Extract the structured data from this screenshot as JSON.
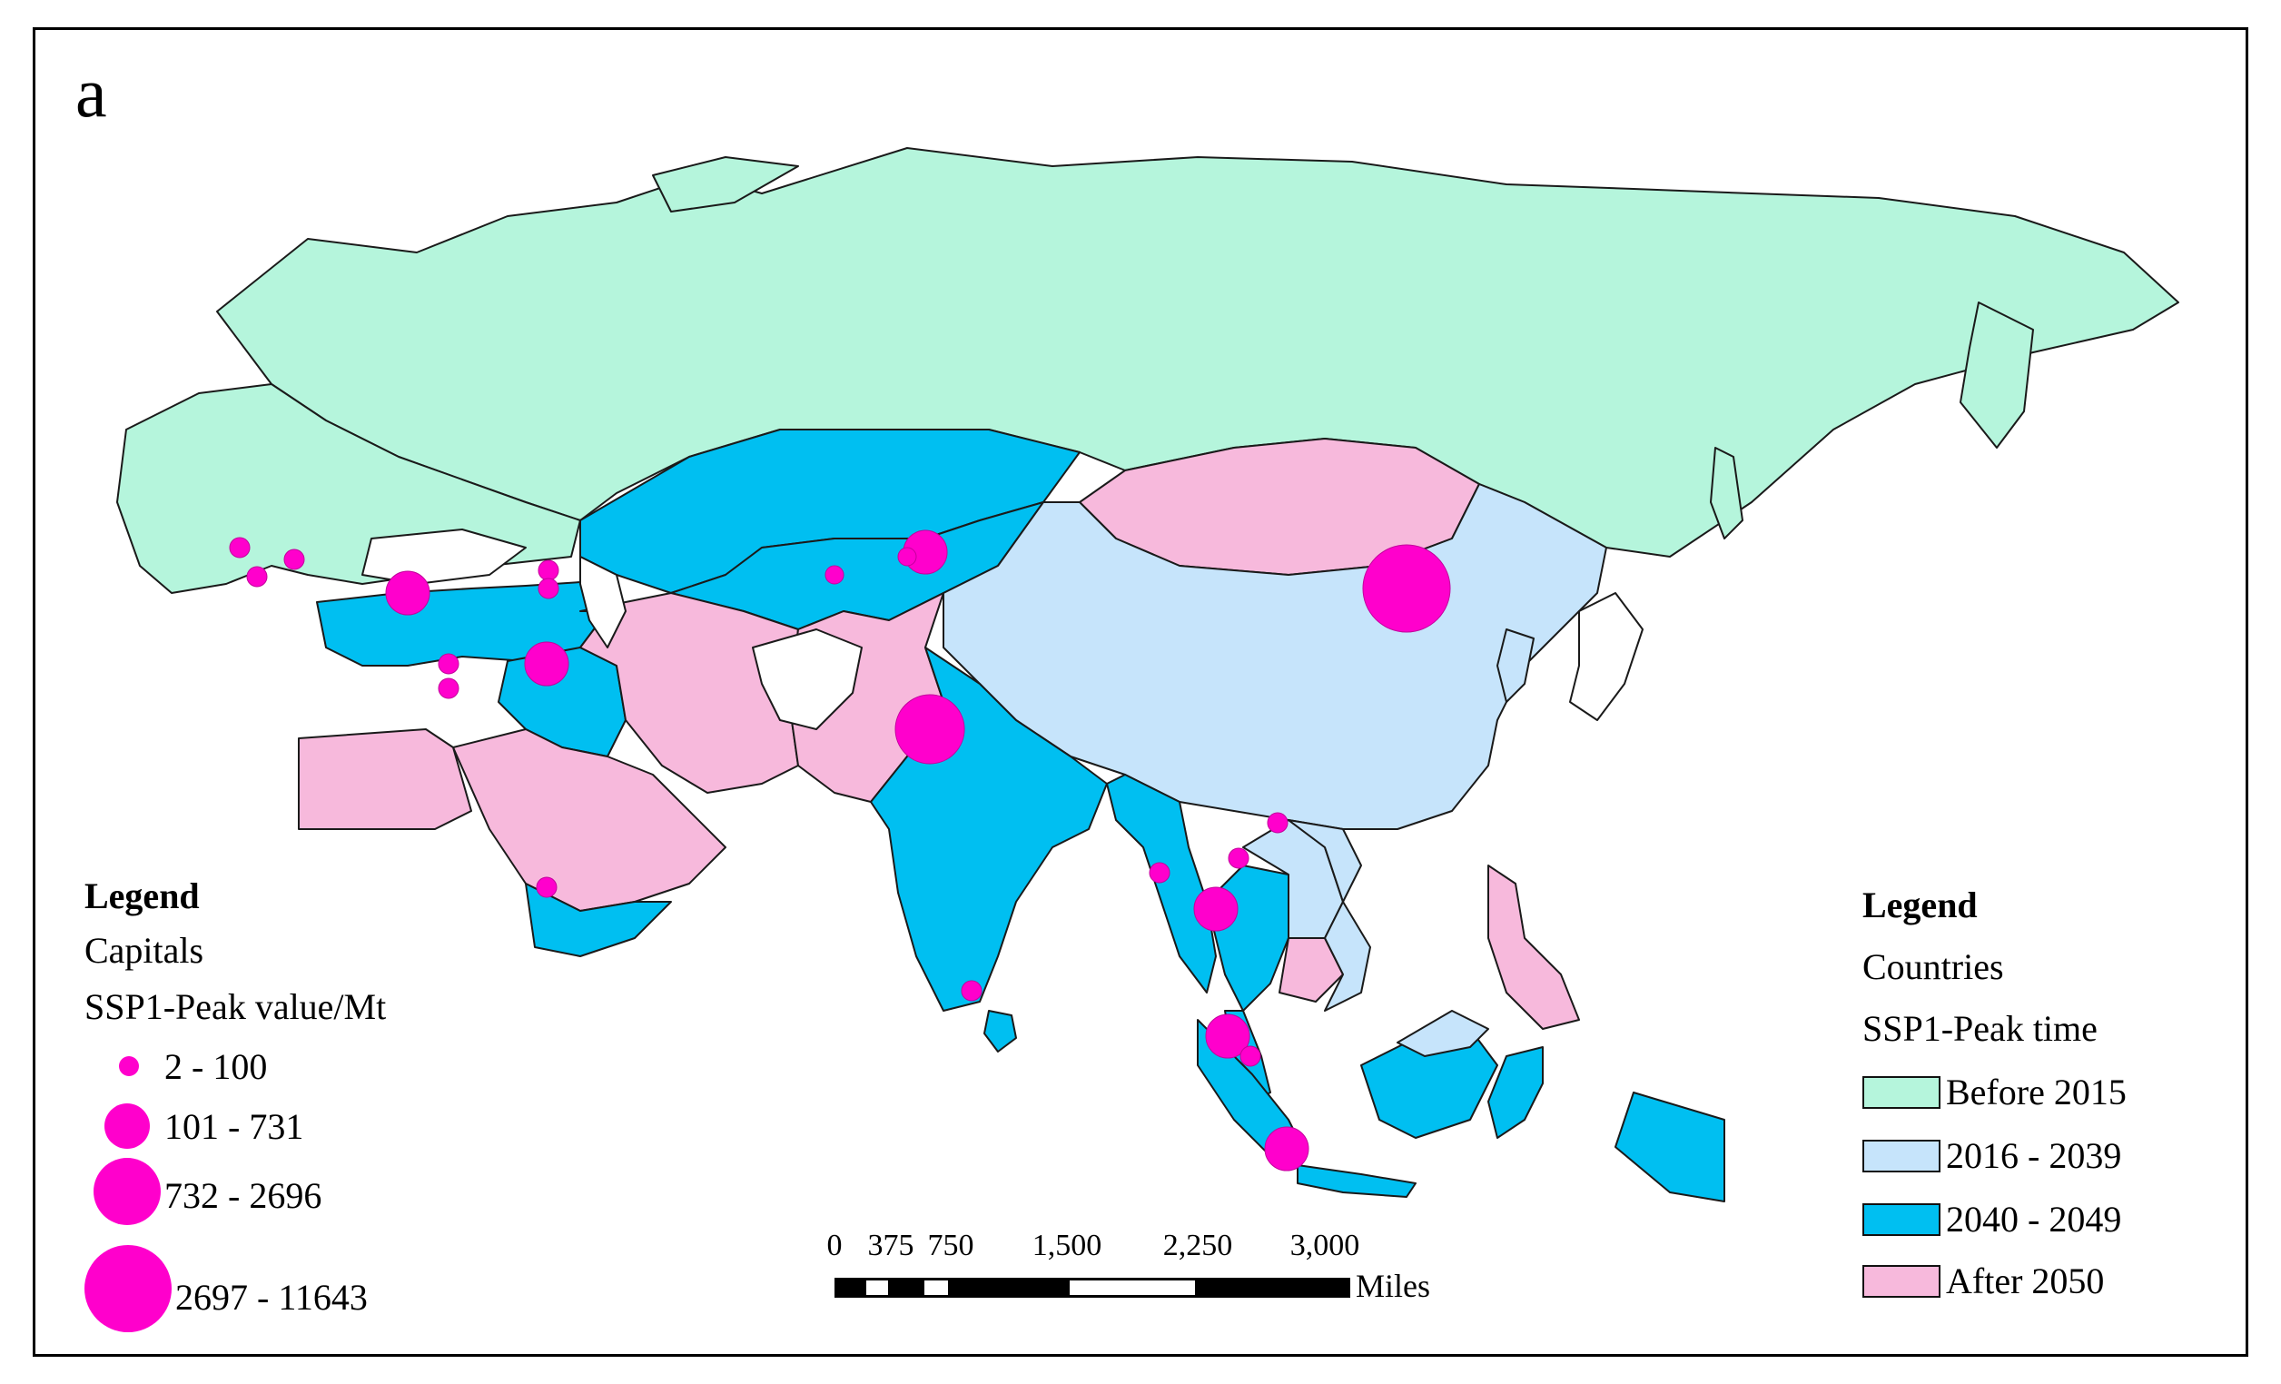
{
  "panel_label": "a",
  "colors": {
    "before_2015": "#b5f5dc",
    "2016_2039": "#c6e4fb",
    "2040_2049": "#00bff1",
    "after_2050": "#f7b9dc",
    "no_data": "#ffffff",
    "capital": "#ff00cc"
  },
  "legend_left": {
    "title": "Legend",
    "layer": "Capitals",
    "field": "SSP1-Peak value/Mt",
    "classes": [
      "2 - 100",
      "101 - 731",
      "732 - 2696",
      "2697 - 11643"
    ]
  },
  "legend_right": {
    "title": "Legend",
    "layer": "Countries",
    "field": "SSP1-Peak time",
    "classes": [
      {
        "label": "Before 2015",
        "color": "#b5f5dc"
      },
      {
        "label": "2016 - 2039",
        "color": "#c6e4fb"
      },
      {
        "label": "2040 - 2049",
        "color": "#00bff1"
      },
      {
        "label": "After 2050",
        "color": "#f7b9dc"
      }
    ]
  },
  "scale_bar": {
    "ticks": [
      "0",
      "375",
      "750",
      "1,500",
      "2,250",
      "3,000"
    ],
    "unit": "Miles"
  }
}
